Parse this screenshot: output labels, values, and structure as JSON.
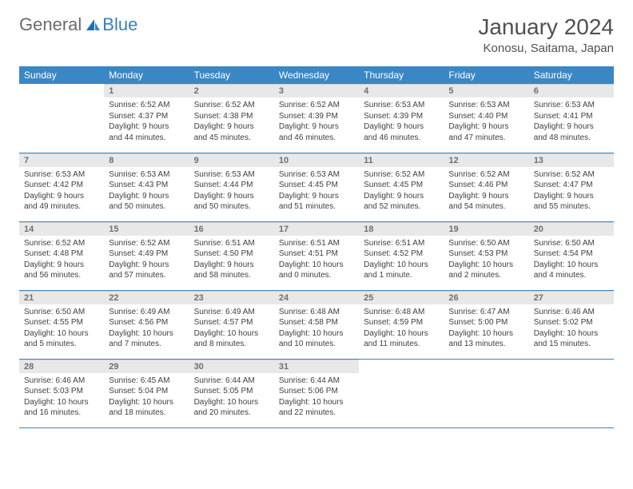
{
  "logo": {
    "text1": "General",
    "text2": "Blue",
    "accent": "#3a87c5"
  },
  "title": "January 2024",
  "location": "Konosu, Saitama, Japan",
  "colors": {
    "header_bg": "#3a87c5",
    "header_text": "#ffffff",
    "daynum_bg": "#e8e8e8",
    "daynum_text": "#707070",
    "body_text": "#404040",
    "rule": "#3a87c5"
  },
  "weekdays": [
    "Sunday",
    "Monday",
    "Tuesday",
    "Wednesday",
    "Thursday",
    "Friday",
    "Saturday"
  ],
  "first_day_index": 1,
  "days": [
    {
      "n": "1",
      "sunrise": "6:52 AM",
      "sunset": "4:37 PM",
      "daylight": "9 hours and 44 minutes."
    },
    {
      "n": "2",
      "sunrise": "6:52 AM",
      "sunset": "4:38 PM",
      "daylight": "9 hours and 45 minutes."
    },
    {
      "n": "3",
      "sunrise": "6:52 AM",
      "sunset": "4:39 PM",
      "daylight": "9 hours and 46 minutes."
    },
    {
      "n": "4",
      "sunrise": "6:53 AM",
      "sunset": "4:39 PM",
      "daylight": "9 hours and 46 minutes."
    },
    {
      "n": "5",
      "sunrise": "6:53 AM",
      "sunset": "4:40 PM",
      "daylight": "9 hours and 47 minutes."
    },
    {
      "n": "6",
      "sunrise": "6:53 AM",
      "sunset": "4:41 PM",
      "daylight": "9 hours and 48 minutes."
    },
    {
      "n": "7",
      "sunrise": "6:53 AM",
      "sunset": "4:42 PM",
      "daylight": "9 hours and 49 minutes."
    },
    {
      "n": "8",
      "sunrise": "6:53 AM",
      "sunset": "4:43 PM",
      "daylight": "9 hours and 50 minutes."
    },
    {
      "n": "9",
      "sunrise": "6:53 AM",
      "sunset": "4:44 PM",
      "daylight": "9 hours and 50 minutes."
    },
    {
      "n": "10",
      "sunrise": "6:53 AM",
      "sunset": "4:45 PM",
      "daylight": "9 hours and 51 minutes."
    },
    {
      "n": "11",
      "sunrise": "6:52 AM",
      "sunset": "4:45 PM",
      "daylight": "9 hours and 52 minutes."
    },
    {
      "n": "12",
      "sunrise": "6:52 AM",
      "sunset": "4:46 PM",
      "daylight": "9 hours and 54 minutes."
    },
    {
      "n": "13",
      "sunrise": "6:52 AM",
      "sunset": "4:47 PM",
      "daylight": "9 hours and 55 minutes."
    },
    {
      "n": "14",
      "sunrise": "6:52 AM",
      "sunset": "4:48 PM",
      "daylight": "9 hours and 56 minutes."
    },
    {
      "n": "15",
      "sunrise": "6:52 AM",
      "sunset": "4:49 PM",
      "daylight": "9 hours and 57 minutes."
    },
    {
      "n": "16",
      "sunrise": "6:51 AM",
      "sunset": "4:50 PM",
      "daylight": "9 hours and 58 minutes."
    },
    {
      "n": "17",
      "sunrise": "6:51 AM",
      "sunset": "4:51 PM",
      "daylight": "10 hours and 0 minutes."
    },
    {
      "n": "18",
      "sunrise": "6:51 AM",
      "sunset": "4:52 PM",
      "daylight": "10 hours and 1 minute."
    },
    {
      "n": "19",
      "sunrise": "6:50 AM",
      "sunset": "4:53 PM",
      "daylight": "10 hours and 2 minutes."
    },
    {
      "n": "20",
      "sunrise": "6:50 AM",
      "sunset": "4:54 PM",
      "daylight": "10 hours and 4 minutes."
    },
    {
      "n": "21",
      "sunrise": "6:50 AM",
      "sunset": "4:55 PM",
      "daylight": "10 hours and 5 minutes."
    },
    {
      "n": "22",
      "sunrise": "6:49 AM",
      "sunset": "4:56 PM",
      "daylight": "10 hours and 7 minutes."
    },
    {
      "n": "23",
      "sunrise": "6:49 AM",
      "sunset": "4:57 PM",
      "daylight": "10 hours and 8 minutes."
    },
    {
      "n": "24",
      "sunrise": "6:48 AM",
      "sunset": "4:58 PM",
      "daylight": "10 hours and 10 minutes."
    },
    {
      "n": "25",
      "sunrise": "6:48 AM",
      "sunset": "4:59 PM",
      "daylight": "10 hours and 11 minutes."
    },
    {
      "n": "26",
      "sunrise": "6:47 AM",
      "sunset": "5:00 PM",
      "daylight": "10 hours and 13 minutes."
    },
    {
      "n": "27",
      "sunrise": "6:46 AM",
      "sunset": "5:02 PM",
      "daylight": "10 hours and 15 minutes."
    },
    {
      "n": "28",
      "sunrise": "6:46 AM",
      "sunset": "5:03 PM",
      "daylight": "10 hours and 16 minutes."
    },
    {
      "n": "29",
      "sunrise": "6:45 AM",
      "sunset": "5:04 PM",
      "daylight": "10 hours and 18 minutes."
    },
    {
      "n": "30",
      "sunrise": "6:44 AM",
      "sunset": "5:05 PM",
      "daylight": "10 hours and 20 minutes."
    },
    {
      "n": "31",
      "sunrise": "6:44 AM",
      "sunset": "5:06 PM",
      "daylight": "10 hours and 22 minutes."
    }
  ],
  "labels": {
    "sunrise": "Sunrise:",
    "sunset": "Sunset:",
    "daylight": "Daylight:"
  }
}
